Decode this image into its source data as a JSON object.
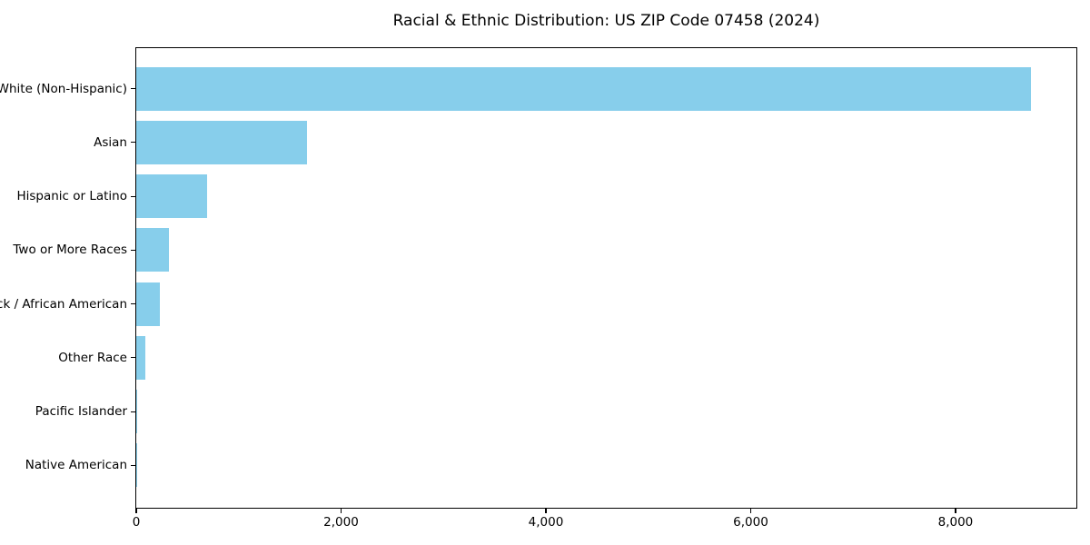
{
  "chart_data": {
    "type": "bar",
    "orientation": "horizontal",
    "title": "Racial & Ethnic Distribution: US ZIP Code 07458 (2024)",
    "categories": [
      "White (Non-Hispanic)",
      "Asian",
      "Hispanic or Latino",
      "Two or More Races",
      "Black / African American",
      "Other Race",
      "Pacific Islander",
      "Native American"
    ],
    "values": [
      8740,
      1670,
      690,
      320,
      235,
      90,
      10,
      4
    ],
    "xlabel": "",
    "ylabel": "",
    "xlim": [
      0,
      9180
    ],
    "xticks": [
      0,
      2000,
      4000,
      6000,
      8000
    ],
    "xtick_labels": [
      "0",
      "2,000",
      "4,000",
      "6,000",
      "8,000"
    ],
    "bar_color": "#87CEEB",
    "axis_color": "#000000",
    "text_color": "#000000",
    "background_color": "#FFFFFF",
    "grid": false,
    "legend": null
  }
}
